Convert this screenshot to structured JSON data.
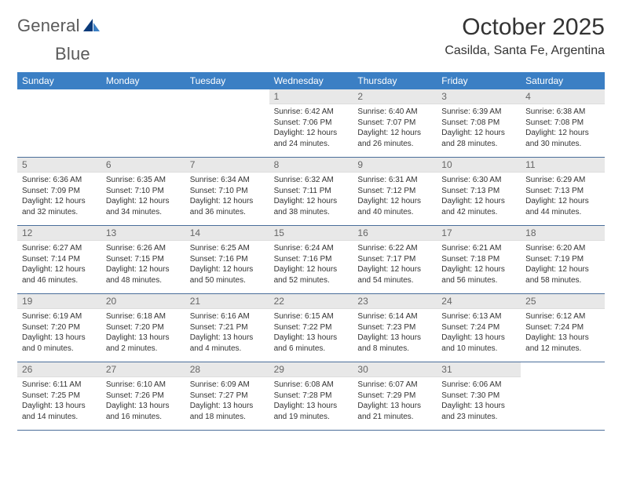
{
  "brand": {
    "text1": "General",
    "text2": "Blue"
  },
  "logo_colors": {
    "tri_dark": "#0a3a7a",
    "tri_light": "#3b7fc4",
    "text_color": "#5a5a5a"
  },
  "title": "October 2025",
  "location": "Casilda, Santa Fe, Argentina",
  "header_bg": "#3b7fc4",
  "daynum_bg": "#e8e8e8",
  "week_border": "#4a6e9a",
  "daynames": [
    "Sunday",
    "Monday",
    "Tuesday",
    "Wednesday",
    "Thursday",
    "Friday",
    "Saturday"
  ],
  "weeks": [
    [
      {
        "n": "",
        "empty": true
      },
      {
        "n": "",
        "empty": true
      },
      {
        "n": "",
        "empty": true
      },
      {
        "n": "1",
        "sunrise": "6:42 AM",
        "sunset": "7:06 PM",
        "dh": 12,
        "dm": 24
      },
      {
        "n": "2",
        "sunrise": "6:40 AM",
        "sunset": "7:07 PM",
        "dh": 12,
        "dm": 26
      },
      {
        "n": "3",
        "sunrise": "6:39 AM",
        "sunset": "7:08 PM",
        "dh": 12,
        "dm": 28
      },
      {
        "n": "4",
        "sunrise": "6:38 AM",
        "sunset": "7:08 PM",
        "dh": 12,
        "dm": 30
      }
    ],
    [
      {
        "n": "5",
        "sunrise": "6:36 AM",
        "sunset": "7:09 PM",
        "dh": 12,
        "dm": 32
      },
      {
        "n": "6",
        "sunrise": "6:35 AM",
        "sunset": "7:10 PM",
        "dh": 12,
        "dm": 34
      },
      {
        "n": "7",
        "sunrise": "6:34 AM",
        "sunset": "7:10 PM",
        "dh": 12,
        "dm": 36
      },
      {
        "n": "8",
        "sunrise": "6:32 AM",
        "sunset": "7:11 PM",
        "dh": 12,
        "dm": 38
      },
      {
        "n": "9",
        "sunrise": "6:31 AM",
        "sunset": "7:12 PM",
        "dh": 12,
        "dm": 40
      },
      {
        "n": "10",
        "sunrise": "6:30 AM",
        "sunset": "7:13 PM",
        "dh": 12,
        "dm": 42
      },
      {
        "n": "11",
        "sunrise": "6:29 AM",
        "sunset": "7:13 PM",
        "dh": 12,
        "dm": 44
      }
    ],
    [
      {
        "n": "12",
        "sunrise": "6:27 AM",
        "sunset": "7:14 PM",
        "dh": 12,
        "dm": 46
      },
      {
        "n": "13",
        "sunrise": "6:26 AM",
        "sunset": "7:15 PM",
        "dh": 12,
        "dm": 48
      },
      {
        "n": "14",
        "sunrise": "6:25 AM",
        "sunset": "7:16 PM",
        "dh": 12,
        "dm": 50
      },
      {
        "n": "15",
        "sunrise": "6:24 AM",
        "sunset": "7:16 PM",
        "dh": 12,
        "dm": 52
      },
      {
        "n": "16",
        "sunrise": "6:22 AM",
        "sunset": "7:17 PM",
        "dh": 12,
        "dm": 54
      },
      {
        "n": "17",
        "sunrise": "6:21 AM",
        "sunset": "7:18 PM",
        "dh": 12,
        "dm": 56
      },
      {
        "n": "18",
        "sunrise": "6:20 AM",
        "sunset": "7:19 PM",
        "dh": 12,
        "dm": 58
      }
    ],
    [
      {
        "n": "19",
        "sunrise": "6:19 AM",
        "sunset": "7:20 PM",
        "dh": 13,
        "dm": 0
      },
      {
        "n": "20",
        "sunrise": "6:18 AM",
        "sunset": "7:20 PM",
        "dh": 13,
        "dm": 2
      },
      {
        "n": "21",
        "sunrise": "6:16 AM",
        "sunset": "7:21 PM",
        "dh": 13,
        "dm": 4
      },
      {
        "n": "22",
        "sunrise": "6:15 AM",
        "sunset": "7:22 PM",
        "dh": 13,
        "dm": 6
      },
      {
        "n": "23",
        "sunrise": "6:14 AM",
        "sunset": "7:23 PM",
        "dh": 13,
        "dm": 8
      },
      {
        "n": "24",
        "sunrise": "6:13 AM",
        "sunset": "7:24 PM",
        "dh": 13,
        "dm": 10
      },
      {
        "n": "25",
        "sunrise": "6:12 AM",
        "sunset": "7:24 PM",
        "dh": 13,
        "dm": 12
      }
    ],
    [
      {
        "n": "26",
        "sunrise": "6:11 AM",
        "sunset": "7:25 PM",
        "dh": 13,
        "dm": 14
      },
      {
        "n": "27",
        "sunrise": "6:10 AM",
        "sunset": "7:26 PM",
        "dh": 13,
        "dm": 16
      },
      {
        "n": "28",
        "sunrise": "6:09 AM",
        "sunset": "7:27 PM",
        "dh": 13,
        "dm": 18
      },
      {
        "n": "29",
        "sunrise": "6:08 AM",
        "sunset": "7:28 PM",
        "dh": 13,
        "dm": 19
      },
      {
        "n": "30",
        "sunrise": "6:07 AM",
        "sunset": "7:29 PM",
        "dh": 13,
        "dm": 21
      },
      {
        "n": "31",
        "sunrise": "6:06 AM",
        "sunset": "7:30 PM",
        "dh": 13,
        "dm": 23
      },
      {
        "n": "",
        "empty": true
      }
    ]
  ],
  "labels": {
    "sunrise": "Sunrise:",
    "sunset": "Sunset:",
    "daylight": "Daylight:",
    "hours": "hours",
    "and": "and",
    "minutes": "minutes."
  }
}
